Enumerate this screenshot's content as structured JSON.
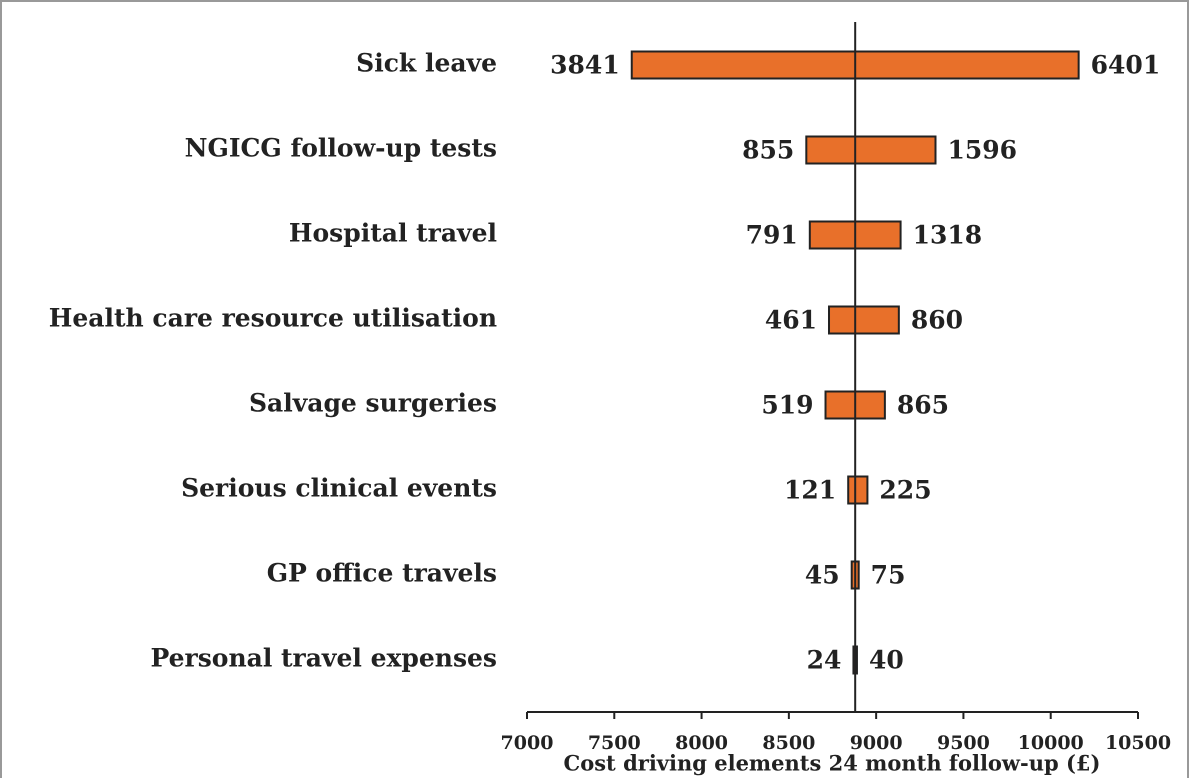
{
  "chart_data": {
    "type": "tornado",
    "xlabel": "Cost driving elements 24 month follow-up (£)",
    "categories": [
      "Sick leave",
      "NGICG follow-up tests",
      "Hospital travel",
      "Health care resource utilisation",
      "Salvage surgeries",
      "Serious clinical events",
      "GP office travels",
      "Personal travel expenses"
    ],
    "low": [
      7600,
      8600,
      8620,
      8730,
      8710,
      8840,
      8860,
      8870
    ],
    "high": [
      10160,
      9340,
      9140,
      9130,
      9050,
      8950,
      8900,
      8890
    ],
    "low_labels": [
      3841,
      855,
      791,
      461,
      519,
      121,
      45,
      24
    ],
    "high_labels": [
      6401,
      1596,
      1318,
      860,
      865,
      225,
      75,
      40
    ],
    "base": 8880,
    "color": "#e8702a",
    "xlim": [
      7000,
      10500
    ],
    "xticks": [
      7000,
      7500,
      8000,
      8500,
      9000,
      9500,
      10000,
      10500
    ]
  }
}
